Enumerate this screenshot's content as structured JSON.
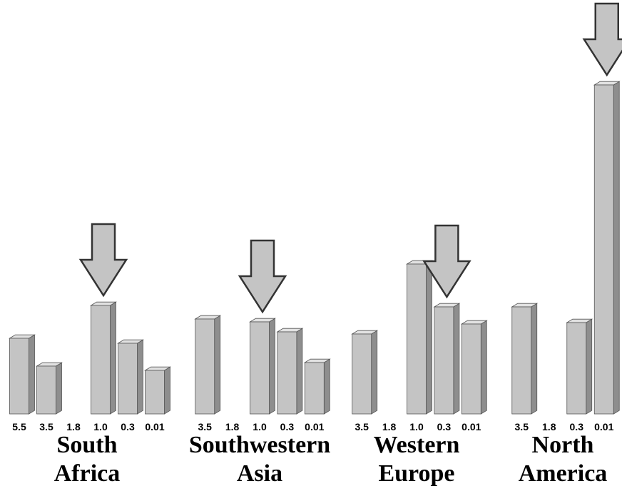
{
  "chart_data": [
    {
      "type": "bar",
      "title": "South Africa",
      "categories": [
        "5.5",
        "3.5",
        "1.8",
        "1.0",
        "0.3",
        "0.01"
      ],
      "values": [
        106,
        67,
        null,
        152,
        99,
        61
      ],
      "ylim": [
        0,
        470
      ],
      "color": "#c4c4c4",
      "highlight": 3
    },
    {
      "type": "bar",
      "title": "Southwestern Asia",
      "categories": [
        "3.5",
        "1.8",
        "1.0",
        "0.3",
        "0.01"
      ],
      "values": [
        133,
        null,
        129,
        115,
        72
      ],
      "ylim": [
        0,
        470
      ],
      "color": "#c4c4c4",
      "highlight": 2
    },
    {
      "type": "bar",
      "title": "Western Europe",
      "categories": [
        "3.5",
        "1.8",
        "1.0",
        "0.3",
        "0.01"
      ],
      "values": [
        112,
        null,
        210,
        150,
        126
      ],
      "ylim": [
        0,
        470
      ],
      "color": "#c4c4c4",
      "highlight": 3
    },
    {
      "type": "bar",
      "title": "North America",
      "categories": [
        "3.5",
        "1.8",
        "0.3",
        "0.01"
      ],
      "values": [
        150,
        null,
        128,
        461
      ],
      "ylim": [
        0,
        470
      ],
      "color": "#c4c4c4",
      "highlight": 3
    }
  ]
}
